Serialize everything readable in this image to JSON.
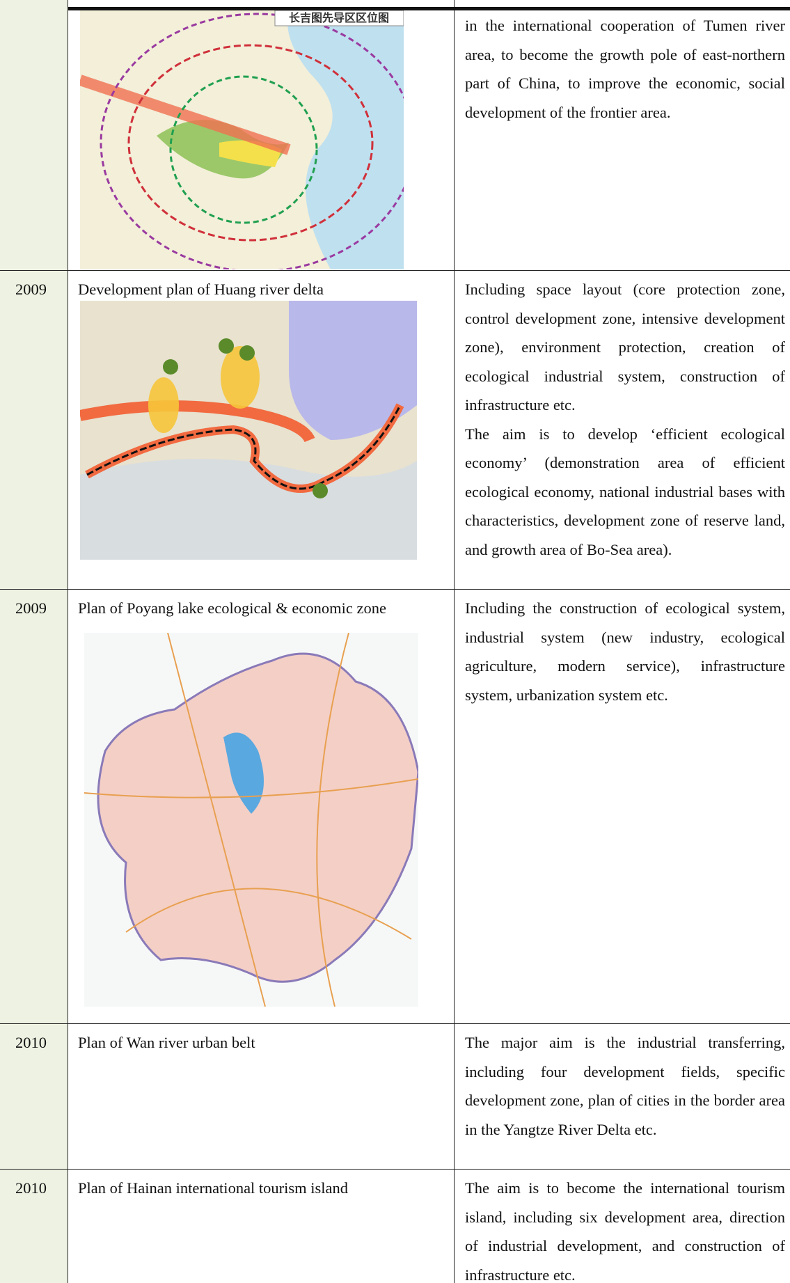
{
  "table": {
    "rows": [
      {
        "map_title": "长吉图先导区区位图",
        "description": [
          "in the international cooperation of Tumen river area, to become the growth pole of east-northern part of China, to improve the economic, social development of the frontier area."
        ]
      },
      {
        "year": "2009",
        "plan": "Development plan of Huang river delta",
        "description": [
          "Including space layout (core protection zone, control development zone, intensive development zone), environment protection, creation of ecological industrial system, construction of infrastructure etc.",
          "The aim is to develop ‘efficient ecological economy’ (demonstration area of efficient ecological economy, national industrial bases with characteristics, development zone of reserve land, and growth area of Bo-Sea area)."
        ]
      },
      {
        "year": "2009",
        "plan": "Plan of Poyang lake ecological & economic zone",
        "description": [
          "Including the construction of ecological system, industrial system (new industry, ecological agriculture, modern service), infrastructure system, urbanization system etc."
        ]
      },
      {
        "year": "2010",
        "plan": "Plan of Wan river urban belt",
        "description": [
          "The major aim is the industrial transferring, including four development fields, specific development zone, plan of cities in the border area in the Yangtze River Delta etc."
        ]
      },
      {
        "year": "2010",
        "plan": "Plan of Hainan international tourism island",
        "description": [
          "The aim is to become the international tourism island, including six development area, direction of industrial development, and construction of infrastructure etc."
        ]
      }
    ]
  }
}
